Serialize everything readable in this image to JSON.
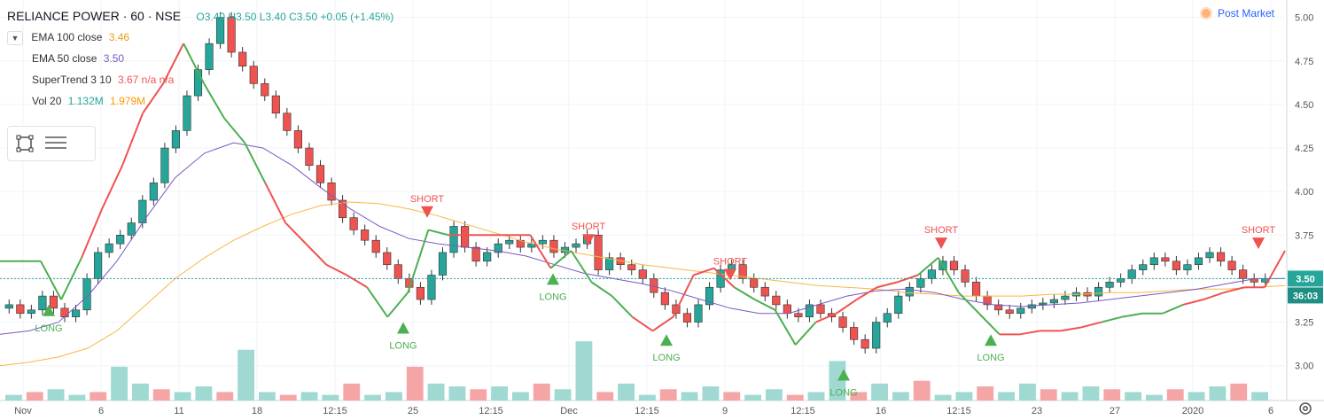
{
  "header": {
    "symbol": "RELIANCE POWER · 60 · NSE",
    "ohlc": "O3.40  H3.50  L3.40  C3.50  +0.05 (+1.45%)",
    "post_market": "Post Market"
  },
  "legend": [
    {
      "name": "EMA 100 close",
      "value": "3.46",
      "color": "#f5b942"
    },
    {
      "name": "EMA 50 close",
      "value": "3.50",
      "color": "#7e57c2"
    },
    {
      "name": "SuperTrend 3 10",
      "value": "3.67  n/a  n/a",
      "color": "#ef5350"
    },
    {
      "name": "Vol 20",
      "value": "1.132M",
      "value2": "1.979M",
      "color": "#26a69a",
      "color2": "#ff9800"
    }
  ],
  "colors": {
    "up": "#26a69a",
    "down": "#ef5350",
    "st_up": "#4caf50",
    "st_down": "#ef5350",
    "ema100": "#f5b942",
    "ema50": "#7e57c2",
    "grid": "#f0f3fa",
    "axis": "#555555"
  },
  "chart_data": {
    "type": "line",
    "ylim": [
      2.8,
      5.1
    ],
    "yticks": [
      "3.00",
      "3.25",
      "3.50",
      "3.75",
      "4.00",
      "4.25",
      "4.50",
      "4.75",
      "5.00"
    ],
    "xticks": [
      "Nov",
      "6",
      "11",
      "18",
      "12:15",
      "25",
      "12:15",
      "Dec",
      "12:15",
      "9",
      "12:15",
      "16",
      "12:15",
      "23",
      "27",
      "2020",
      "6"
    ],
    "last_price": "3.50",
    "countdown": "36:03",
    "close": [
      3.35,
      3.3,
      3.32,
      3.4,
      3.33,
      3.28,
      3.32,
      3.5,
      3.65,
      3.7,
      3.75,
      3.82,
      3.95,
      4.05,
      4.25,
      4.35,
      4.55,
      4.7,
      4.85,
      5.0,
      4.8,
      4.72,
      4.62,
      4.55,
      4.45,
      4.35,
      4.25,
      4.15,
      4.05,
      3.95,
      3.85,
      3.78,
      3.72,
      3.65,
      3.58,
      3.5,
      3.45,
      3.38,
      3.52,
      3.65,
      3.8,
      3.68,
      3.6,
      3.65,
      3.7,
      3.72,
      3.68,
      3.7,
      3.72,
      3.65,
      3.68,
      3.7,
      3.75,
      3.55,
      3.62,
      3.58,
      3.55,
      3.5,
      3.42,
      3.35,
      3.3,
      3.25,
      3.35,
      3.45,
      3.55,
      3.58,
      3.5,
      3.45,
      3.4,
      3.35,
      3.3,
      3.28,
      3.35,
      3.3,
      3.28,
      3.22,
      3.15,
      3.1,
      3.25,
      3.3,
      3.4,
      3.45,
      3.5,
      3.55,
      3.6,
      3.55,
      3.48,
      3.4,
      3.35,
      3.32,
      3.3,
      3.33,
      3.35,
      3.36,
      3.38,
      3.4,
      3.42,
      3.4,
      3.45,
      3.48,
      3.5,
      3.55,
      3.58,
      3.62,
      3.6,
      3.55,
      3.58,
      3.62,
      3.65,
      3.6,
      3.55,
      3.5,
      3.48,
      3.5
    ],
    "series": [
      {
        "name": "EMA 100 close",
        "values": [
          3.0,
          3.02,
          3.05,
          3.1,
          3.2,
          3.35,
          3.5,
          3.62,
          3.72,
          3.8,
          3.87,
          3.92,
          3.94,
          3.93,
          3.9,
          3.86,
          3.81,
          3.76,
          3.71,
          3.67,
          3.64,
          3.61,
          3.58,
          3.56,
          3.54,
          3.52,
          3.5,
          3.48,
          3.46,
          3.45,
          3.44,
          3.42,
          3.41,
          3.4,
          3.4,
          3.4,
          3.41,
          3.41,
          3.42,
          3.42,
          3.43,
          3.44,
          3.44,
          3.45,
          3.46
        ]
      },
      {
        "name": "EMA 50 close",
        "values": [
          3.18,
          3.2,
          3.25,
          3.4,
          3.6,
          3.85,
          4.08,
          4.22,
          4.28,
          4.25,
          4.15,
          4.02,
          3.9,
          3.8,
          3.73,
          3.7,
          3.68,
          3.66,
          3.63,
          3.58,
          3.53,
          3.5,
          3.47,
          3.43,
          3.38,
          3.33,
          3.3,
          3.3,
          3.35,
          3.4,
          3.43,
          3.44,
          3.42,
          3.38,
          3.35,
          3.34,
          3.35,
          3.36,
          3.38,
          3.4,
          3.42,
          3.44,
          3.47,
          3.5,
          3.5
        ]
      },
      {
        "name": "SuperTrend 3 10",
        "values": [
          3.6,
          3.6,
          3.6,
          3.38,
          3.62,
          3.9,
          4.15,
          4.45,
          4.62,
          4.85,
          4.62,
          4.42,
          4.28,
          4.05,
          3.82,
          3.7,
          3.58,
          3.52,
          3.45,
          3.28,
          3.42,
          3.78,
          3.75,
          3.75,
          3.75,
          3.75,
          3.75,
          3.56,
          3.66,
          3.48,
          3.4,
          3.28,
          3.2,
          3.28,
          3.52,
          3.56,
          3.45,
          3.38,
          3.32,
          3.12,
          3.25,
          3.3,
          3.38,
          3.45,
          3.48,
          3.52,
          3.62,
          3.42,
          3.3,
          3.18,
          3.18,
          3.2,
          3.2,
          3.22,
          3.25,
          3.28,
          3.3,
          3.3,
          3.35,
          3.38,
          3.42,
          3.45,
          3.45,
          3.66
        ]
      },
      {
        "name": "Vol 20",
        "values": [
          0.2,
          0.3,
          0.4,
          0.2,
          0.3,
          1.2,
          0.6,
          0.4,
          0.3,
          0.5,
          0.3,
          1.8,
          0.3,
          0.2,
          0.3,
          0.2,
          0.6,
          0.2,
          0.3,
          1.2,
          0.6,
          0.5,
          0.4,
          0.5,
          0.3,
          0.6,
          0.4,
          2.1,
          0.3,
          0.6,
          0.2,
          0.4,
          0.3,
          0.5,
          0.3,
          0.2,
          0.4,
          0.2,
          0.3,
          1.4,
          0.3,
          0.6,
          0.3,
          0.7,
          0.2,
          0.3,
          0.5,
          0.3,
          0.6,
          0.4,
          0.3,
          0.5,
          0.4,
          0.3,
          0.2,
          0.4,
          0.3,
          0.5,
          0.6,
          0.3
        ]
      }
    ],
    "annotations": [
      {
        "label": "LONG",
        "dir": "up",
        "x": 55,
        "y": 3.32
      },
      {
        "label": "LONG",
        "dir": "up",
        "x": 455,
        "y": 3.22
      },
      {
        "label": "SHORT",
        "dir": "down",
        "x": 482,
        "y": 3.88
      },
      {
        "label": "LONG",
        "dir": "up",
        "x": 624,
        "y": 3.5
      },
      {
        "label": "SHORT",
        "dir": "down",
        "x": 664,
        "y": 3.72
      },
      {
        "label": "LONG",
        "dir": "up",
        "x": 752,
        "y": 3.15
      },
      {
        "label": "SHORT",
        "dir": "down",
        "x": 824,
        "y": 3.52
      },
      {
        "label": "LONG",
        "dir": "up",
        "x": 952,
        "y": 2.95
      },
      {
        "label": "SHORT",
        "dir": "down",
        "x": 1062,
        "y": 3.7
      },
      {
        "label": "LONG",
        "dir": "up",
        "x": 1118,
        "y": 3.15
      },
      {
        "label": "SHORT",
        "dir": "down",
        "x": 1420,
        "y": 3.7
      }
    ]
  }
}
